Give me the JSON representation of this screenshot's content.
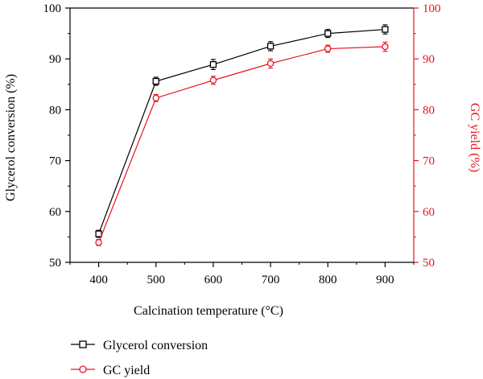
{
  "chart_data": {
    "type": "line",
    "x": [
      400,
      500,
      600,
      700,
      800,
      900
    ],
    "xlabel": "Calcination temperature (°C)",
    "ylabel": "Glycerol conversion (%)",
    "y2label": "GC yield (%)",
    "xlim": [
      350,
      950
    ],
    "ylim": [
      50,
      100
    ],
    "y2lim": [
      50,
      100
    ],
    "xticks": [
      "400",
      "500",
      "600",
      "700",
      "800",
      "900"
    ],
    "yticks": [
      "50",
      "60",
      "70",
      "80",
      "90",
      "100"
    ],
    "y2ticks": [
      "50",
      "60",
      "70",
      "80",
      "90",
      "100"
    ],
    "grid": false,
    "legend_position": "bottom",
    "series": [
      {
        "name": "Glycerol conversion",
        "axis": "left",
        "color": "#000000",
        "marker": "square",
        "values": [
          55.6,
          85.6,
          88.9,
          92.5,
          95.0,
          95.8
        ],
        "errors": [
          0.7,
          0.8,
          1.0,
          0.9,
          0.8,
          0.9
        ]
      },
      {
        "name": "GC yield",
        "axis": "right",
        "color": "#e8141c",
        "marker": "circle",
        "values": [
          53.9,
          82.3,
          85.8,
          89.1,
          92.0,
          92.4
        ],
        "errors": [
          0.6,
          0.7,
          0.8,
          0.9,
          0.7,
          0.9
        ]
      }
    ]
  },
  "legend": {
    "items": [
      {
        "label": "Glycerol conversion"
      },
      {
        "label": "GC yield"
      }
    ]
  }
}
